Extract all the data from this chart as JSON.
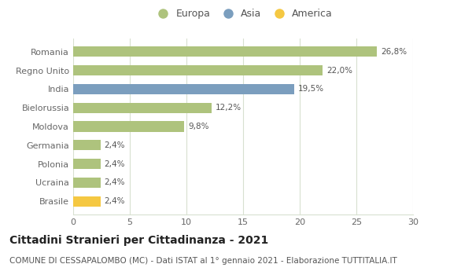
{
  "countries": [
    "Romania",
    "Regno Unito",
    "India",
    "Bielorussia",
    "Moldova",
    "Germania",
    "Polonia",
    "Ucraina",
    "Brasile"
  ],
  "values": [
    26.8,
    22.0,
    19.5,
    12.2,
    9.8,
    2.4,
    2.4,
    2.4,
    2.4
  ],
  "labels": [
    "26,8%",
    "22,0%",
    "19,5%",
    "12,2%",
    "9,8%",
    "2,4%",
    "2,4%",
    "2,4%",
    "2,4%"
  ],
  "bar_colors": [
    "#aec37d",
    "#aec37d",
    "#7b9ebe",
    "#aec37d",
    "#aec37d",
    "#aec37d",
    "#aec37d",
    "#aec37d",
    "#f5c842"
  ],
  "legend_labels": [
    "Europa",
    "Asia",
    "America"
  ],
  "legend_colors": [
    "#aec37d",
    "#7b9ebe",
    "#f5c842"
  ],
  "xlim": [
    0,
    30
  ],
  "xticks": [
    0,
    5,
    10,
    15,
    20,
    25,
    30
  ],
  "title": "Cittadini Stranieri per Cittadinanza - 2021",
  "subtitle": "COMUNE DI CESSAPALOMBO (MC) - Dati ISTAT al 1° gennaio 2021 - Elaborazione TUTTITALIA.IT",
  "title_fontsize": 10,
  "subtitle_fontsize": 7.5,
  "label_fontsize": 7.5,
  "tick_fontsize": 8,
  "legend_fontsize": 9,
  "bg_color": "#ffffff",
  "grid_color": "#d8e0d0"
}
